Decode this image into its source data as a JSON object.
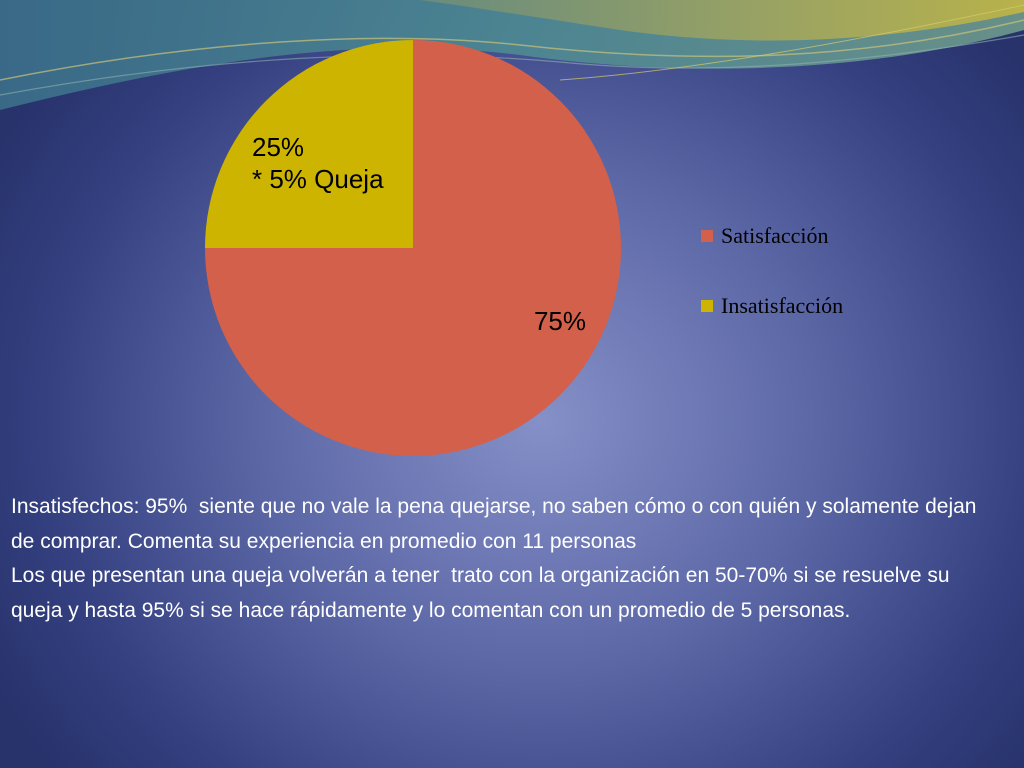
{
  "colors": {
    "satisfaccion": "#d3604a",
    "insatisfaccion": "#ccb400",
    "text": "#ffffff"
  },
  "chart_data": {
    "type": "pie",
    "categories": [
      "Satisfacción",
      "Insatisfacción"
    ],
    "values": [
      75,
      25
    ],
    "data_labels": [
      {
        "lines": [
          "75%"
        ]
      },
      {
        "lines": [
          "25%",
          "* 5% Queja"
        ]
      }
    ],
    "legend": {
      "position": "right",
      "entries": [
        "Satisfacción",
        "Insatisfacción"
      ]
    },
    "title": "",
    "xlabel": "",
    "ylabel": ""
  },
  "body": {
    "paragraph_1": "Insatisfechos: 95%  siente que no vale la pena quejarse, no saben cómo o con quién y solamente dejan de comprar. Comenta su experiencia en promedio con 11 personas",
    "paragraph_2": "Los que presentan una queja volverán a tener  trato con la organización en 50-70% si se resuelve su queja y hasta 95% si se hace rápidamente y lo comentan con un promedio de 5 personas."
  }
}
